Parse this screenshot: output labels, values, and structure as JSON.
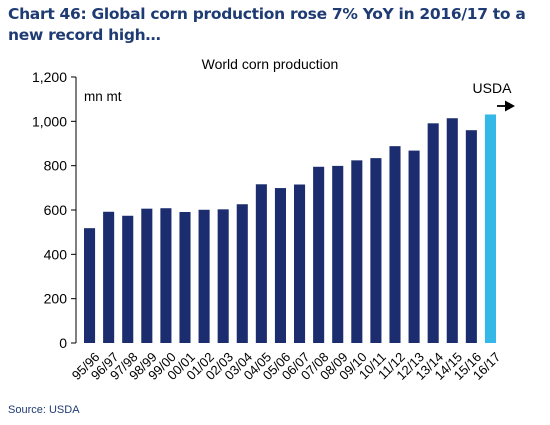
{
  "chart_data": {
    "type": "bar",
    "title": "Chart 46: Global corn production rose 7% YoY in 2016/17 to a new record high…",
    "subtitle": "World corn production",
    "ylabel": "mn mt",
    "annotation": "USDA",
    "source": "Source: USDA",
    "ylim": [
      0,
      1200
    ],
    "yticks": [
      0,
      200,
      400,
      600,
      800,
      1000,
      1200
    ],
    "ytick_labels": [
      "0",
      "200",
      "400",
      "600",
      "800",
      "1,000",
      "1,200"
    ],
    "grid": false,
    "categories": [
      "95/96",
      "96/97",
      "97/98",
      "98/99",
      "99/00",
      "00/01",
      "01/02",
      "02/03",
      "03/04",
      "04/05",
      "05/06",
      "06/07",
      "07/08",
      "08/09",
      "09/10",
      "10/11",
      "11/12",
      "12/13",
      "13/14",
      "14/15",
      "15/16",
      "16/17"
    ],
    "values": [
      518,
      592,
      574,
      606,
      608,
      591,
      601,
      603,
      626,
      716,
      699,
      715,
      795,
      799,
      824,
      834,
      888,
      868,
      991,
      1014,
      960,
      1031
    ],
    "colors": {
      "default": "#1b2d6e",
      "highlight": "#35b8e8",
      "highlight_index": 21,
      "text": "#1f3b73"
    }
  }
}
